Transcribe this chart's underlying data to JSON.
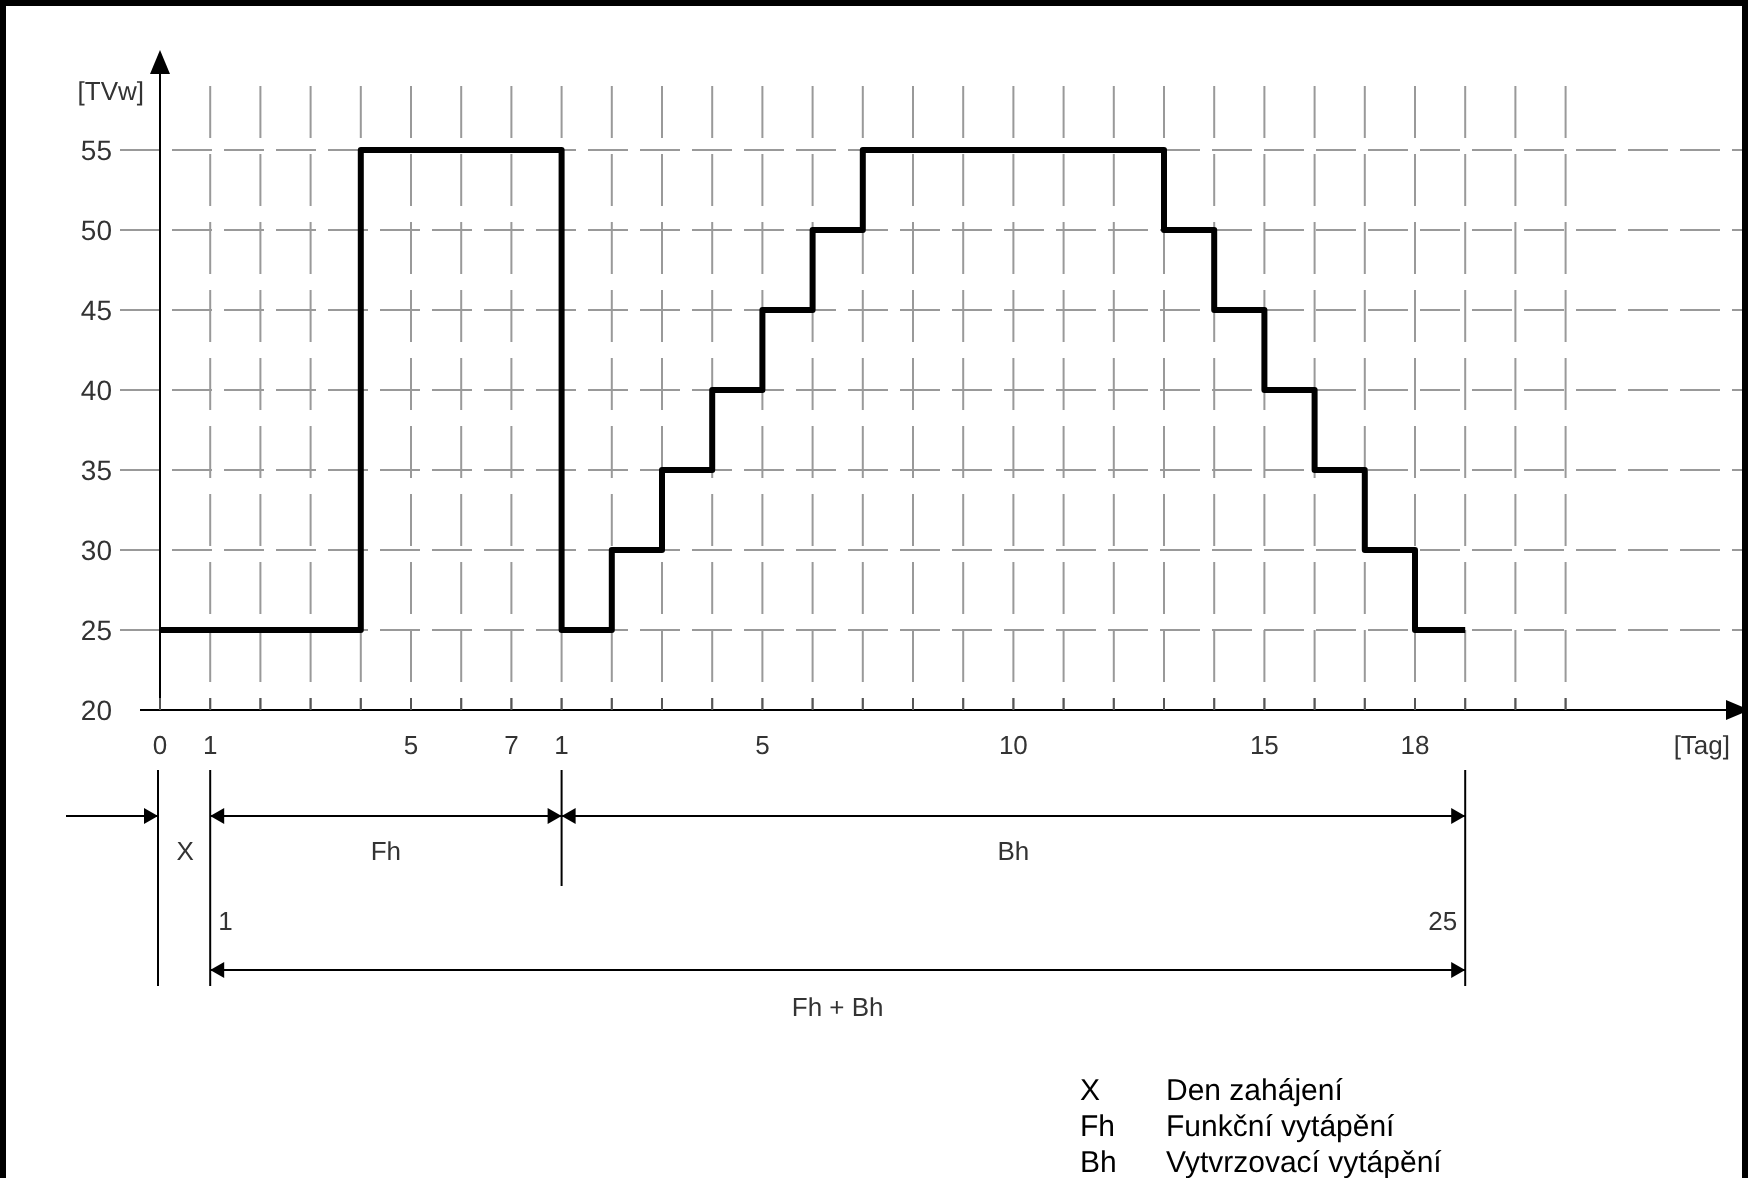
{
  "chart_data": {
    "type": "step",
    "xlabel": "[Tag]",
    "ylabel": "[TVw]",
    "categories": [
      "0",
      "1",
      null,
      null,
      null,
      "5",
      null,
      "7",
      "1",
      null,
      null,
      null,
      "5",
      null,
      null,
      null,
      null,
      "10",
      null,
      null,
      null,
      null,
      "15",
      null,
      null,
      "18",
      null,
      null,
      null
    ],
    "series": [
      {
        "color": "#000000",
        "values": [
          25,
          25,
          25,
          25,
          55,
          55,
          55,
          55,
          25,
          30,
          35,
          40,
          45,
          50,
          55,
          55,
          55,
          55,
          55,
          55,
          50,
          45,
          40,
          35,
          30,
          25,
          25,
          null,
          null
        ]
      }
    ],
    "ylim": [
      20,
      60
    ],
    "yticks": [
      20,
      25,
      30,
      35,
      40,
      45,
      50,
      55
    ],
    "grid": true,
    "line_style": "solid",
    "annotations": [
      "X",
      "Fh",
      "Bh",
      "1",
      "25",
      "Fh + Bh",
      "X",
      "Den zahájení",
      "Fh",
      "Funkční vytápění",
      "Bh",
      "Vytvrzovací vytápění"
    ]
  }
}
